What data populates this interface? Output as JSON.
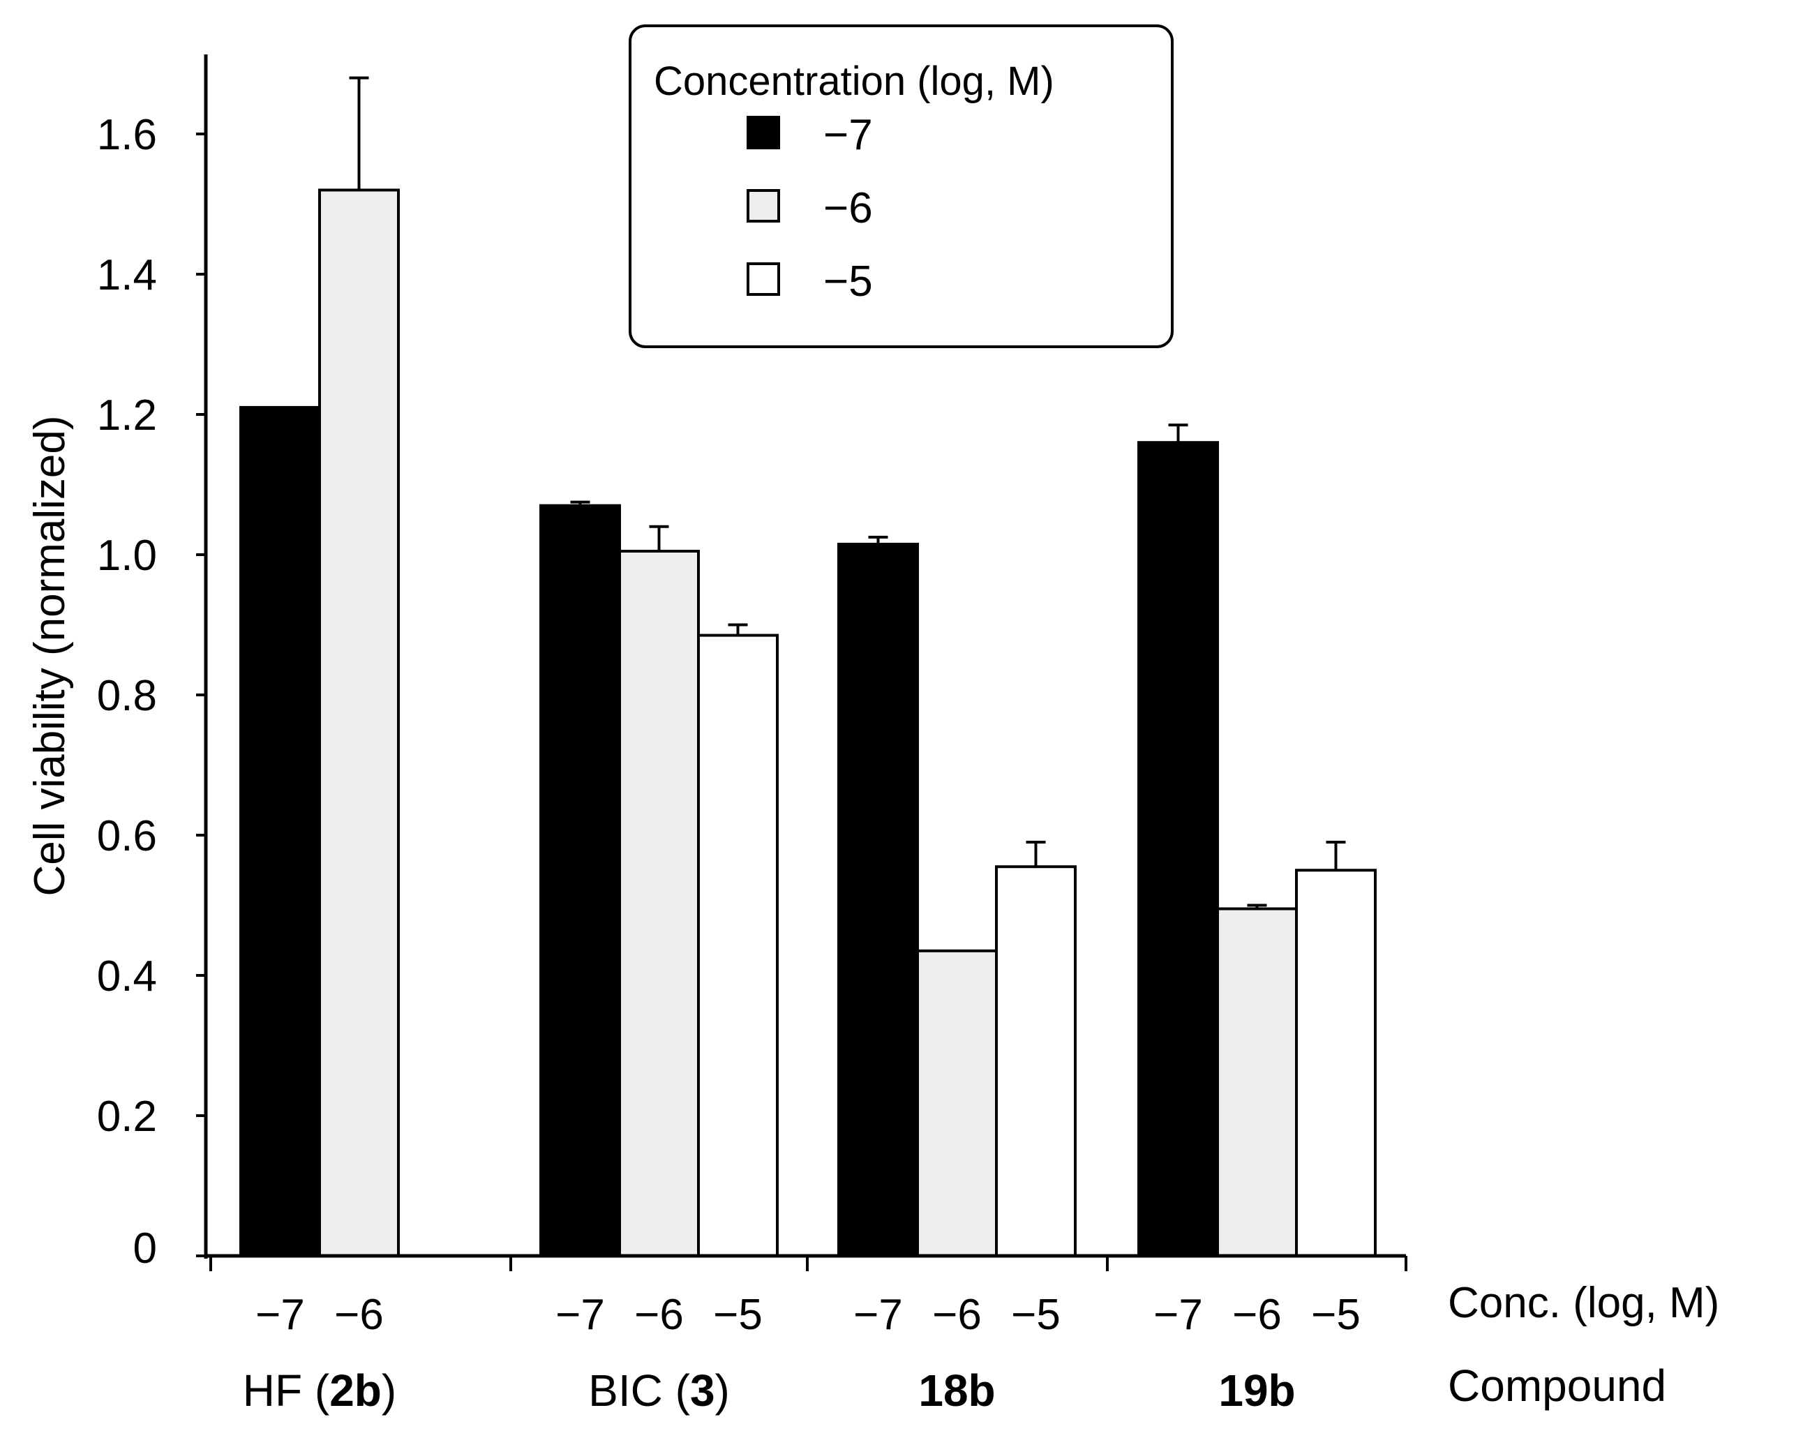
{
  "chart_data": {
    "type": "bar",
    "ylabel": "Cell viability (normalized)",
    "ylim": [
      0,
      1.7
    ],
    "yticks": [
      "0",
      "0.2",
      "0.4",
      "0.6",
      "0.8",
      "1.0",
      "1.2",
      "1.4",
      "1.6"
    ],
    "ytick_values": [
      0,
      0.2,
      0.4,
      0.6,
      0.8,
      1.0,
      1.2,
      1.4,
      1.6
    ],
    "x_row1_label": "Conc. (log, M)",
    "x_row2_label": "Compound",
    "legend": {
      "title": "Concentration (log, M)",
      "entries": [
        {
          "label": "−7",
          "color": "#000000"
        },
        {
          "label": "−6",
          "color": "#eeeeee"
        },
        {
          "label": "−5",
          "color": "#ffffff"
        }
      ]
    },
    "groups": [
      {
        "name_plain": "HF (",
        "name_bold": "2b",
        "name_close": ")",
        "bars": [
          {
            "conc": "−7",
            "value": 1.21,
            "error": 0,
            "color": "#000000"
          },
          {
            "conc": "−6",
            "value": 1.52,
            "error": 0.16,
            "color": "#eeeeee"
          }
        ]
      },
      {
        "name_plain": "BIC (",
        "name_bold": "3",
        "name_close": ")",
        "bars": [
          {
            "conc": "−7",
            "value": 1.07,
            "error": 0.005,
            "color": "#000000"
          },
          {
            "conc": "−6",
            "value": 1.005,
            "error": 0.035,
            "color": "#eeeeee"
          },
          {
            "conc": "−5",
            "value": 0.885,
            "error": 0.015,
            "color": "#ffffff"
          }
        ]
      },
      {
        "name_plain": "",
        "name_bold": "18b",
        "name_close": "",
        "bars": [
          {
            "conc": "−7",
            "value": 1.015,
            "error": 0.01,
            "color": "#000000"
          },
          {
            "conc": "−6",
            "value": 0.435,
            "error": 0,
            "color": "#eeeeee"
          },
          {
            "conc": "−5",
            "value": 0.555,
            "error": 0.035,
            "color": "#ffffff"
          }
        ]
      },
      {
        "name_plain": "",
        "name_bold": "19b",
        "name_close": "",
        "bars": [
          {
            "conc": "−7",
            "value": 1.16,
            "error": 0.025,
            "color": "#000000"
          },
          {
            "conc": "−6",
            "value": 0.495,
            "error": 0.005,
            "color": "#eeeeee"
          },
          {
            "conc": "−5",
            "value": 0.55,
            "error": 0.04,
            "color": "#ffffff"
          }
        ]
      }
    ]
  }
}
